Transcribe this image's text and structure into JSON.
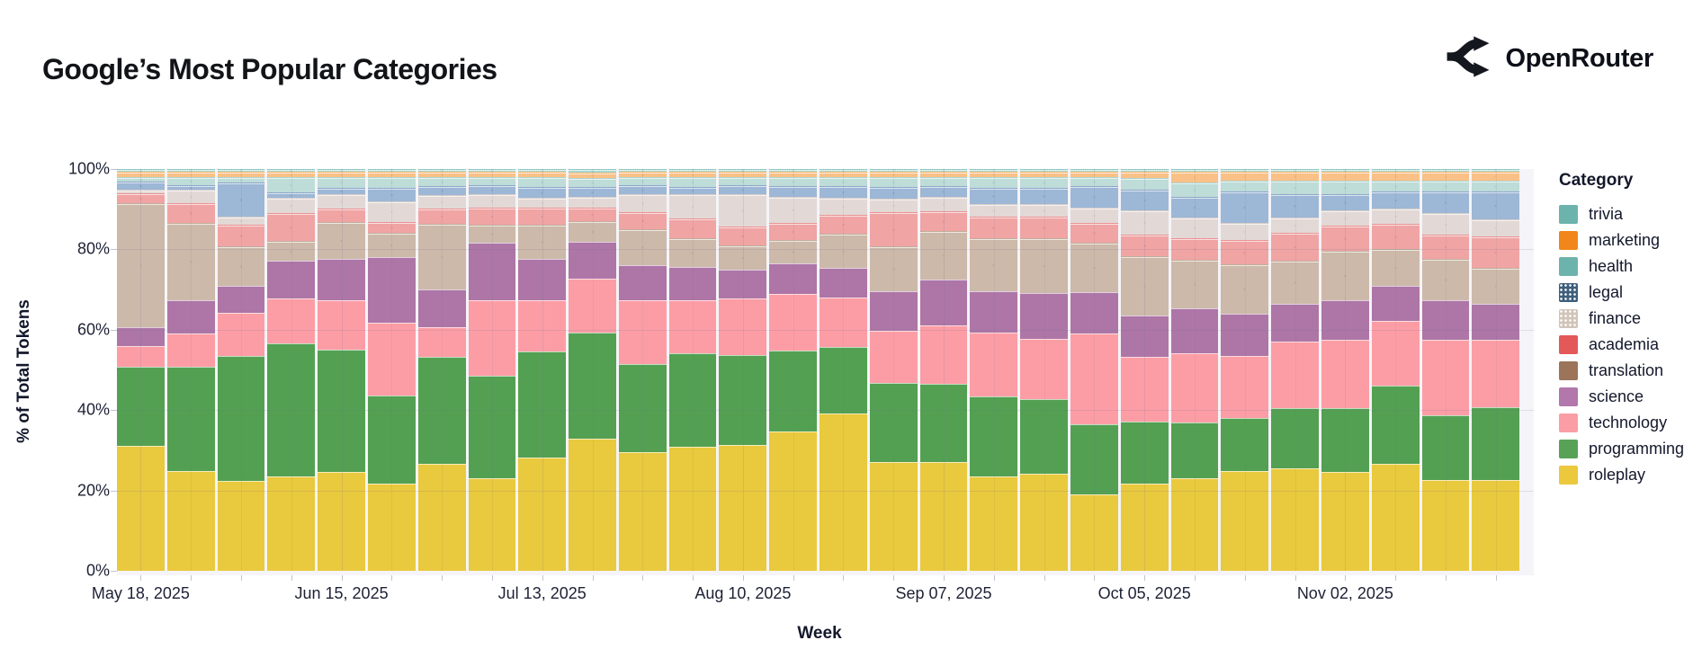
{
  "header": {
    "title": "Google’s Most Popular Categories",
    "brand": "OpenRouter"
  },
  "chart_data": {
    "type": "bar",
    "stacked": true,
    "title": "Google’s Most Popular Categories",
    "xlabel": "Week",
    "ylabel": "% of Total Tokens",
    "ylim": [
      0,
      100
    ],
    "grid": true,
    "legend_title": "Category",
    "legend_position": "right",
    "y_axis": {
      "ticks": [
        "0%",
        "20%",
        "40%",
        "60%",
        "80%",
        "100%"
      ]
    },
    "x_axis": {
      "visible_labels": [
        "May 18, 2025",
        "Jun 15, 2025",
        "Jul 13, 2025",
        "Aug 10, 2025",
        "Sep 07, 2025",
        "Oct 05, 2025",
        "Nov 02, 2025"
      ],
      "visible_label_indices": [
        0,
        4,
        8,
        12,
        16,
        20,
        24
      ]
    },
    "weeks": [
      "May 18",
      "May 25",
      "Jun 01",
      "Jun 08",
      "Jun 15",
      "Jun 22",
      "Jun 29",
      "Jul 06",
      "Jul 13",
      "Jul 20",
      "Jul 27",
      "Aug 03",
      "Aug 10",
      "Aug 17",
      "Aug 24",
      "Aug 31",
      "Sep 07",
      "Sep 14",
      "Sep 21",
      "Sep 28",
      "Oct 05",
      "Oct 12",
      "Oct 19",
      "Oct 26",
      "Nov 02",
      "Nov 09",
      "Nov 16",
      "Nov 23"
    ],
    "stack_order": "top-to-bottom",
    "series": [
      {
        "name": "trivia",
        "legend_color": "#6cb3ac",
        "bar_color": "#a8d8d2",
        "dot_color": "#5ba49d",
        "pattern": true,
        "values": [
          0.5,
          0.5,
          0.5,
          0.5,
          0.5,
          0.5,
          0.5,
          0.5,
          0.5,
          0.8,
          0.5,
          0.5,
          0.5,
          0.5,
          0.5,
          0.5,
          0.5,
          0.5,
          0.5,
          0.5,
          0.5,
          0.5,
          0.5,
          0.5,
          0.5,
          0.5,
          0.5,
          0.5
        ]
      },
      {
        "name": "marketing",
        "legend_color": "#f1871a",
        "bar_color": "#f9c188",
        "dot_color": "#ef9d3c",
        "pattern": true,
        "values": [
          1.0,
          1.1,
          1.0,
          1.1,
          1.1,
          1.0,
          1.0,
          1.0,
          1.0,
          1.0,
          1.0,
          1.0,
          1.0,
          1.0,
          1.2,
          1.2,
          1.2,
          1.2,
          1.2,
          1.2,
          1.2,
          2.5,
          2.0,
          2.0,
          2.0,
          2.0,
          2.0,
          2.0
        ]
      },
      {
        "name": "health",
        "legend_color": "#6cb3ac",
        "bar_color": "#bedcd8",
        "dot_color": "#84bcb6",
        "pattern": true,
        "values": [
          0.9,
          1.9,
          1.3,
          3.7,
          2.6,
          2.6,
          2.2,
          1.9,
          2.4,
          2.2,
          2.0,
          2.4,
          2.0,
          2.0,
          2.0,
          2.2,
          1.9,
          2.4,
          2.4,
          2.0,
          2.9,
          3.3,
          2.6,
          3.3,
          3.3,
          2.6,
          2.6,
          2.6
        ]
      },
      {
        "name": "legal",
        "legend_color": "#3f5f7d",
        "bar_color": "#9db7d6",
        "dot_color": "#6583ab",
        "pattern": true,
        "values": [
          1.9,
          0.9,
          8.3,
          1.1,
          1.3,
          3.3,
          1.9,
          2.1,
          2.6,
          2.2,
          1.9,
          1.5,
          1.9,
          2.5,
          2.6,
          2.6,
          2.6,
          3.9,
          3.9,
          5.2,
          4.8,
          5.2,
          7.8,
          5.6,
          3.7,
          4.1,
          5.2,
          6.7
        ]
      },
      {
        "name": "finance",
        "legend_color": "#d1c4b8",
        "bar_color": "#e2d9d6",
        "dot_color": "#bfb0a6",
        "pattern": true,
        "values": [
          0.7,
          3.2,
          1.9,
          3.7,
          3.5,
          4.8,
          3.3,
          3.1,
          2.2,
          2.6,
          4.5,
          6.1,
          8.2,
          6.3,
          4.1,
          3.3,
          3.3,
          3.0,
          3.0,
          3.7,
          5.9,
          4.8,
          4.1,
          3.7,
          3.7,
          3.7,
          5.2,
          4.1
        ]
      },
      {
        "name": "academia",
        "legend_color": "#e35959",
        "bar_color": "#f0a4a4",
        "dot_color": "#e06a6a",
        "pattern": true,
        "values": [
          2.2,
          4.8,
          5.2,
          6.7,
          3.0,
          2.6,
          3.7,
          4.1,
          4.1,
          3.0,
          4.1,
          4.8,
          4.5,
          4.1,
          4.5,
          8.5,
          4.8,
          5.2,
          5.2,
          4.8,
          5.2,
          5.4,
          5.9,
          6.7,
          6.3,
          6.2,
          5.9,
          7.8
        ]
      },
      {
        "name": "translation",
        "legend_color": "#9c7459",
        "bar_color": "#ccb9a9",
        "dot_color": "#ab9078",
        "pattern": true,
        "values": [
          31.3,
          19.4,
          9.6,
          4.8,
          9.3,
          5.9,
          16.3,
          4.5,
          8.5,
          5.2,
          8.9,
          7.0,
          5.9,
          5.6,
          8.5,
          11.1,
          12.2,
          13.0,
          13.7,
          12.2,
          14.8,
          12.0,
          12.2,
          10.8,
          12.2,
          9.1,
          10.4,
          8.9
        ]
      },
      {
        "name": "science",
        "legend_color": "#b277ab",
        "bar_color": "#ad76a7",
        "dot_color": null,
        "pattern": false,
        "values": [
          4.8,
          8.4,
          7.0,
          9.6,
          10.4,
          16.7,
          9.6,
          14.5,
          10.4,
          9.3,
          8.9,
          8.5,
          7.4,
          7.8,
          7.4,
          10.0,
          11.5,
          10.4,
          11.5,
          10.4,
          10.4,
          11.5,
          10.8,
          9.6,
          10.0,
          8.9,
          10.0,
          9.3
        ]
      },
      {
        "name": "technology",
        "legend_color": "#fa9da5",
        "bar_color": "#fc9da5",
        "dot_color": null,
        "pattern": false,
        "values": [
          5.2,
          8.4,
          10.9,
          11.4,
          12.5,
          18.5,
          7.6,
          19.2,
          13.0,
          13.7,
          16.3,
          13.7,
          14.5,
          14.1,
          12.6,
          13.0,
          14.7,
          16.3,
          15.2,
          23.0,
          16.3,
          17.4,
          15.9,
          16.7,
          17.4,
          16.5,
          19.3,
          17.1
        ]
      },
      {
        "name": "programming",
        "legend_color": "#57a257",
        "bar_color": "#53a053",
        "dot_color": null,
        "pattern": false,
        "values": [
          20.0,
          26.5,
          31.5,
          33.9,
          31.2,
          22.3,
          26.9,
          26.0,
          27.1,
          27.1,
          22.3,
          23.7,
          23.0,
          20.4,
          16.7,
          20.0,
          19.8,
          20.0,
          18.9,
          17.8,
          15.6,
          14.1,
          13.4,
          15.2,
          16.3,
          19.9,
          16.5,
          18.5
        ]
      },
      {
        "name": "roleplay",
        "legend_color": "#ecc83d",
        "bar_color": "#e9c93d",
        "dot_color": null,
        "pattern": false,
        "values": [
          31.7,
          25.4,
          22.6,
          23.9,
          25.1,
          22.0,
          27.2,
          23.5,
          28.7,
          33.5,
          30.2,
          31.7,
          32.0,
          35.0,
          39.8,
          27.6,
          27.6,
          23.9,
          24.6,
          19.4,
          22.0,
          23.5,
          25.4,
          26.0,
          25.0,
          27.2,
          23.0,
          23.1
        ]
      }
    ]
  }
}
